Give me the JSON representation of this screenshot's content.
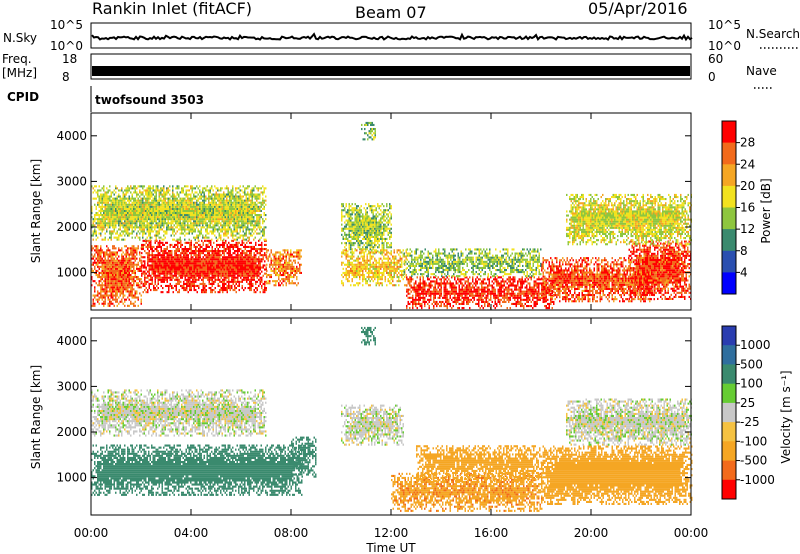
{
  "header": {
    "title": "Rankin Inlet (fitACF)",
    "beam": "Beam 07",
    "date": "05/Apr/2016"
  },
  "top_panels": {
    "nsky_label": "N.Sky",
    "nsky_ticks": [
      "10^5",
      "10^0"
    ],
    "nsearch_label": "N.Search",
    "nsearch_ticks": [
      "10^5",
      "10^0"
    ],
    "freq_label": "Freq.",
    "freq_unit": "[MHz]",
    "freq_ticks": [
      "18",
      "8"
    ],
    "nave_label": "Nave",
    "nave_ticks": [
      "60",
      "0"
    ],
    "cpid_label": "CPID",
    "cpid_value": "twofsound 3503"
  },
  "chart_data": [
    {
      "type": "heatmap",
      "title": "",
      "xlabel": "Time UT",
      "ylabel": "Slant Range [km]",
      "xlim": [
        0,
        24
      ],
      "ylim": [
        180,
        4500
      ],
      "x_ticks": [
        "00:00",
        "04:00",
        "08:00",
        "12:00",
        "16:00",
        "20:00",
        "00:00"
      ],
      "y_ticks": [
        "1000",
        "2000",
        "3000",
        "4000"
      ],
      "colorbar": {
        "label": "Power [dB]",
        "ticks": [
          "4",
          "8",
          "12",
          "16",
          "20",
          "24",
          "28"
        ],
        "colors": [
          "#0000ff",
          "#2a4fb0",
          "#3a8a6e",
          "#8ec63f",
          "#f2e21f",
          "#f5a623",
          "#f26a1b",
          "#ff0000"
        ]
      },
      "regions": [
        {
          "t0": 0.0,
          "t1": 2.0,
          "r0": 250,
          "r1": 1600,
          "value": 24
        },
        {
          "t0": 2.0,
          "t1": 7.0,
          "r0": 550,
          "r1": 1700,
          "value": 27
        },
        {
          "t0": 7.0,
          "t1": 8.4,
          "r0": 700,
          "r1": 1500,
          "value": 22
        },
        {
          "t0": 0.0,
          "t1": 7.0,
          "r0": 1700,
          "r1": 2900,
          "value": 14
        },
        {
          "t0": 10.0,
          "t1": 12.0,
          "r0": 1400,
          "r1": 2500,
          "value": 13
        },
        {
          "t0": 10.0,
          "t1": 12.6,
          "r0": 700,
          "r1": 1500,
          "value": 18
        },
        {
          "t0": 12.6,
          "t1": 18.5,
          "r0": 200,
          "r1": 900,
          "value": 27
        },
        {
          "t0": 18.0,
          "t1": 22.5,
          "r0": 350,
          "r1": 1300,
          "value": 25
        },
        {
          "t0": 21.5,
          "t1": 24.0,
          "r0": 400,
          "r1": 1700,
          "value": 26
        },
        {
          "t0": 19.0,
          "t1": 24.0,
          "r0": 1600,
          "r1": 2700,
          "value": 15
        },
        {
          "t0": 12.5,
          "t1": 18.0,
          "r0": 900,
          "r1": 1500,
          "value": 12
        },
        {
          "t0": 10.8,
          "t1": 11.4,
          "r0": 3900,
          "r1": 4300,
          "value": 11
        }
      ]
    },
    {
      "type": "heatmap",
      "title": "",
      "xlabel": "Time UT",
      "ylabel": "Slant Range [km]",
      "xlim": [
        0,
        24
      ],
      "ylim": [
        180,
        4500
      ],
      "x_ticks": [
        "00:00",
        "04:00",
        "08:00",
        "12:00",
        "16:00",
        "20:00",
        "00:00"
      ],
      "y_ticks": [
        "1000",
        "2000",
        "3000",
        "4000"
      ],
      "colorbar": {
        "label": "Velocity [m s⁻¹]",
        "ticks": [
          "1000",
          "500",
          "100",
          "25",
          "-25",
          "-100",
          "-500",
          "-1000"
        ],
        "colors": [
          "#2a3db0",
          "#2f6e9e",
          "#3a8a6e",
          "#66cc33",
          "#c8c8c8",
          "#f5c242",
          "#f5a623",
          "#f26a1b",
          "#ff0000"
        ]
      },
      "regions": [
        {
          "t0": 0.0,
          "t1": 8.4,
          "r0": 600,
          "r1": 1700,
          "value": 300
        },
        {
          "t0": 0.0,
          "t1": 7.0,
          "r0": 1900,
          "r1": 2900,
          "value": 0
        },
        {
          "t0": 8.0,
          "t1": 9.0,
          "r0": 1000,
          "r1": 1900,
          "value": 200
        },
        {
          "t0": 10.0,
          "t1": 12.5,
          "r0": 1700,
          "r1": 2600,
          "value": 0
        },
        {
          "t0": 12.0,
          "t1": 18.0,
          "r0": 250,
          "r1": 1100,
          "value": -400
        },
        {
          "t0": 13.0,
          "t1": 18.0,
          "r0": 900,
          "r1": 1700,
          "value": -250
        },
        {
          "t0": 18.0,
          "t1": 24.0,
          "r0": 400,
          "r1": 1700,
          "value": -350
        },
        {
          "t0": 19.0,
          "t1": 24.0,
          "r0": 1700,
          "r1": 2700,
          "value": 0
        },
        {
          "t0": 10.8,
          "t1": 11.4,
          "r0": 3900,
          "r1": 4300,
          "value": 200
        }
      ]
    }
  ]
}
